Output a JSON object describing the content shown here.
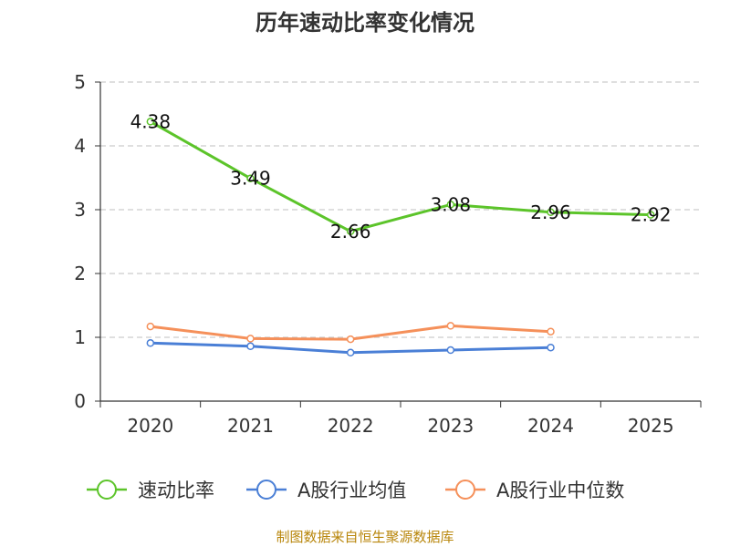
{
  "chart_data": {
    "type": "line",
    "title": "历年速动比率变化情况",
    "categories": [
      "2020",
      "2021",
      "2022",
      "2023",
      "2024",
      "2025"
    ],
    "ylim": [
      0,
      5
    ],
    "yticks": [
      "0",
      "1",
      "2",
      "3",
      "4",
      "5"
    ],
    "grid": true,
    "legend_position": "bottom",
    "series": [
      {
        "name": "速动比率",
        "color": "#5cc42a",
        "values": [
          4.38,
          3.49,
          2.66,
          3.08,
          2.96,
          2.92
        ],
        "labels": [
          "4.38",
          "3.49",
          "2.66",
          "3.08",
          "2.96",
          "2.92"
        ],
        "show_labels": true
      },
      {
        "name": "A股行业均值",
        "color": "#4a7fd6",
        "values": [
          0.91,
          0.86,
          0.76,
          0.8,
          0.84,
          null
        ],
        "show_labels": false
      },
      {
        "name": "A股行业中位数",
        "color": "#f5905a",
        "values": [
          1.17,
          0.98,
          0.97,
          1.18,
          1.09,
          null
        ],
        "show_labels": false
      }
    ]
  },
  "footer": {
    "source": "制图数据来自恒生聚源数据库"
  }
}
